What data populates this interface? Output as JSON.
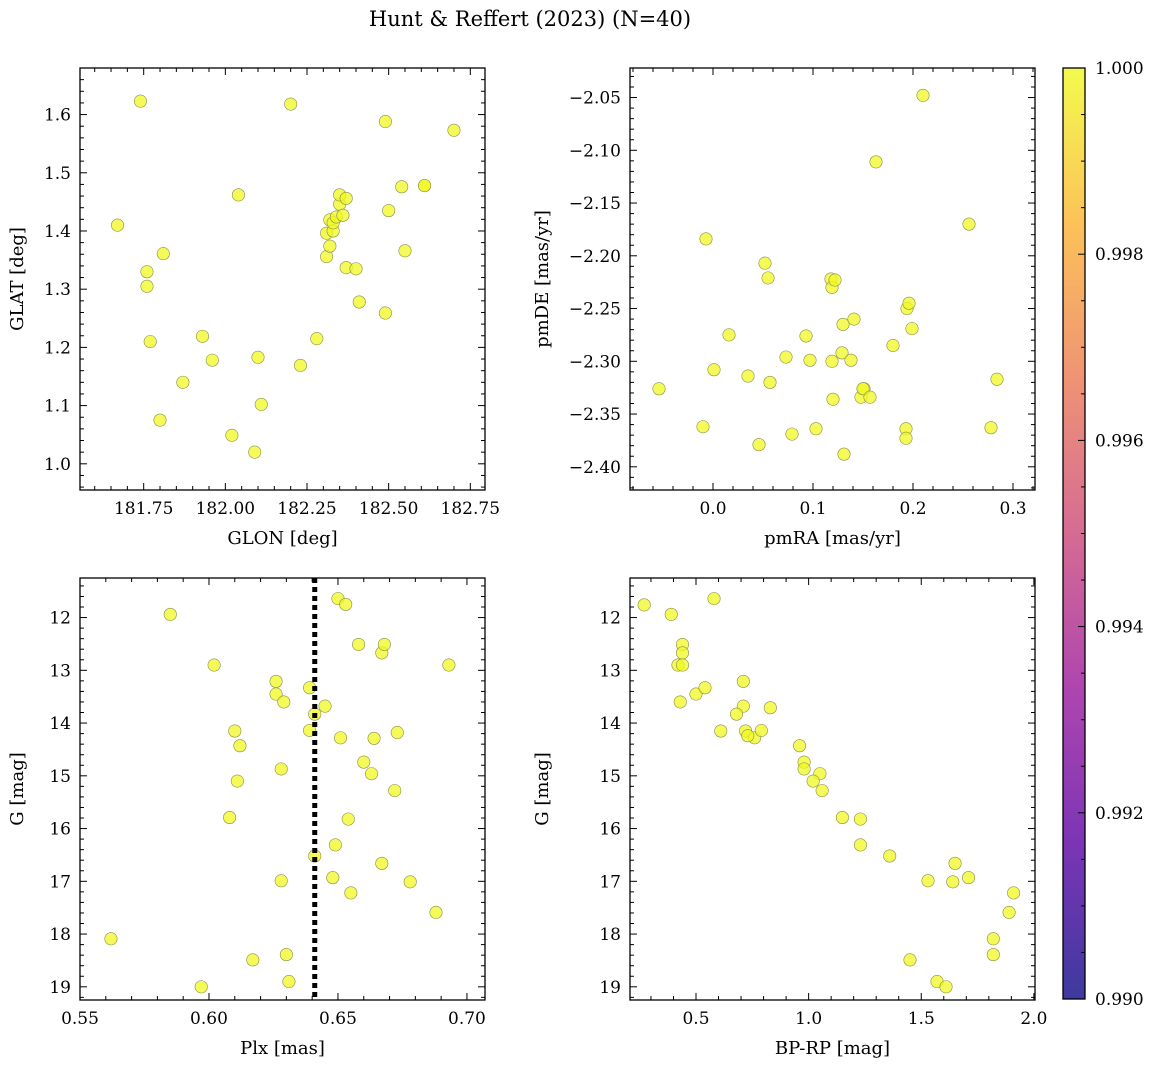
{
  "title": "Hunt & Reffert (2023) (N=40)",
  "colorbar": {
    "ticks": [
      "1.000",
      "0.998",
      "0.996",
      "0.994",
      "0.992",
      "0.990"
    ],
    "range": [
      0.99,
      1.0
    ],
    "colormap": "plasma",
    "colors": [
      "#0d0887",
      "#5b02a3",
      "#9a179b",
      "#cb4678",
      "#eb7852",
      "#fbb32f",
      "#f0f921"
    ]
  },
  "chart_data": [
    {
      "type": "scatter",
      "xlabel": "GLON [deg]",
      "ylabel": "GLAT [deg]",
      "xlim": [
        181.555,
        182.795
      ],
      "ylim": [
        0.955,
        1.68
      ],
      "xticks": [
        "181.75",
        "182.00",
        "182.25",
        "182.50",
        "182.75"
      ],
      "yticks": [
        "1.0",
        "1.1",
        "1.2",
        "1.3",
        "1.4",
        "1.5",
        "1.6"
      ],
      "x": [
        181.74,
        182.2,
        181.67,
        181.81,
        181.76,
        181.76,
        181.77,
        181.87,
        181.8,
        181.93,
        181.96,
        182.04,
        182.02,
        182.09,
        182.11,
        182.1,
        182.23,
        182.28,
        182.31,
        182.31,
        182.32,
        182.32,
        182.33,
        182.33,
        182.34,
        182.35,
        182.35,
        182.37,
        182.37,
        182.4,
        182.41,
        182.49,
        182.49,
        182.5,
        182.54,
        182.55,
        182.61,
        182.61,
        182.7,
        182.36
      ],
      "y": [
        1.623,
        1.618,
        1.41,
        1.361,
        1.33,
        1.305,
        1.21,
        1.14,
        1.075,
        1.219,
        1.178,
        1.462,
        1.049,
        1.02,
        1.102,
        1.183,
        1.169,
        1.215,
        1.396,
        1.356,
        1.374,
        1.419,
        1.4,
        1.414,
        1.424,
        1.446,
        1.462,
        1.456,
        1.337,
        1.335,
        1.278,
        1.588,
        1.259,
        1.435,
        1.476,
        1.366,
        1.478,
        1.478,
        1.573,
        1.427
      ],
      "color_values_min": 1.0
    },
    {
      "type": "scatter",
      "xlabel": "pmRA [mas/yr]",
      "ylabel": "pmDE [mas/yr]",
      "xlim": [
        -0.083,
        0.322
      ],
      "ylim": [
        -2.422,
        -2.022
      ],
      "xticks": [
        "0.0",
        "0.1",
        "0.2",
        "0.3"
      ],
      "yticks": [
        "−2.05",
        "−2.10",
        "−2.15",
        "−2.20",
        "−2.25",
        "−2.30",
        "−2.35",
        "−2.40"
      ],
      "x": [
        -0.054,
        -0.007,
        0.001,
        -0.01,
        0.016,
        0.035,
        0.046,
        0.052,
        0.055,
        0.057,
        0.073,
        0.079,
        0.093,
        0.097,
        0.103,
        0.118,
        0.119,
        0.119,
        0.12,
        0.122,
        0.129,
        0.13,
        0.131,
        0.138,
        0.141,
        0.148,
        0.151,
        0.15,
        0.157,
        0.163,
        0.18,
        0.193,
        0.193,
        0.194,
        0.196,
        0.199,
        0.21,
        0.256,
        0.278,
        0.284
      ],
      "y": [
        -2.326,
        -2.184,
        -2.308,
        -2.362,
        -2.275,
        -2.314,
        -2.379,
        -2.207,
        -2.221,
        -2.32,
        -2.296,
        -2.369,
        -2.276,
        -2.299,
        -2.364,
        -2.222,
        -2.23,
        -2.3,
        -2.336,
        -2.223,
        -2.292,
        -2.265,
        -2.388,
        -2.299,
        -2.26,
        -2.334,
        -2.326,
        -2.326,
        -2.334,
        -2.111,
        -2.285,
        -2.364,
        -2.373,
        -2.25,
        -2.245,
        -2.269,
        -2.048,
        -2.17,
        -2.363,
        -2.317
      ],
      "color_values_min": 1.0
    },
    {
      "type": "scatter",
      "xlabel": "Plx [mas]",
      "ylabel": "G [mag]",
      "xlim": [
        0.55,
        0.707
      ],
      "ylim": [
        19.25,
        11.25
      ],
      "y_inverted": true,
      "xticks": [
        "0.55",
        "0.60",
        "0.65",
        "0.70"
      ],
      "yticks": [
        "12",
        "13",
        "14",
        "15",
        "16",
        "17",
        "18",
        "19"
      ],
      "vline": 0.641,
      "x": [
        0.562,
        0.585,
        0.597,
        0.602,
        0.608,
        0.61,
        0.611,
        0.612,
        0.617,
        0.626,
        0.626,
        0.628,
        0.628,
        0.629,
        0.63,
        0.631,
        0.639,
        0.639,
        0.641,
        0.641,
        0.645,
        0.648,
        0.649,
        0.65,
        0.651,
        0.653,
        0.654,
        0.655,
        0.658,
        0.66,
        0.663,
        0.664,
        0.667,
        0.667,
        0.668,
        0.672,
        0.673,
        0.678,
        0.688,
        0.693
      ],
      "y": [
        18.09,
        11.94,
        19.0,
        12.9,
        15.79,
        14.15,
        15.1,
        14.43,
        18.49,
        13.21,
        13.45,
        16.99,
        14.87,
        13.6,
        18.39,
        18.9,
        13.33,
        14.14,
        13.83,
        16.52,
        13.68,
        16.93,
        16.31,
        11.64,
        14.28,
        11.75,
        15.82,
        17.22,
        12.51,
        14.74,
        14.96,
        14.29,
        16.66,
        12.67,
        12.51,
        15.28,
        14.18,
        17.01,
        17.59,
        12.9
      ],
      "color_values_min": 1.0
    },
    {
      "type": "scatter",
      "xlabel": "BP-RP [mag]",
      "ylabel": "G [mag]",
      "xlim": [
        0.207,
        2.005
      ],
      "ylim": [
        19.25,
        11.25
      ],
      "y_inverted": true,
      "xticks": [
        "0.5",
        "1.0",
        "1.5",
        "2.0"
      ],
      "yticks": [
        "12",
        "13",
        "14",
        "15",
        "16",
        "17",
        "18",
        "19"
      ],
      "x": [
        0.27,
        0.39,
        0.58,
        0.44,
        0.44,
        0.42,
        0.44,
        0.5,
        0.54,
        0.43,
        0.71,
        0.71,
        0.68,
        0.72,
        0.61,
        0.76,
        0.79,
        0.83,
        0.96,
        0.98,
        0.98,
        1.05,
        1.06,
        1.02,
        1.15,
        1.23,
        1.23,
        1.36,
        1.45,
        1.53,
        1.57,
        1.61,
        1.64,
        1.65,
        1.71,
        1.82,
        1.82,
        1.89,
        1.91,
        0.73
      ],
      "y": [
        11.76,
        11.94,
        11.64,
        12.51,
        12.67,
        12.9,
        12.9,
        13.45,
        13.33,
        13.6,
        13.21,
        13.68,
        13.83,
        14.15,
        14.15,
        14.28,
        14.14,
        13.71,
        14.43,
        14.74,
        14.87,
        14.96,
        15.28,
        15.1,
        15.79,
        15.82,
        16.31,
        16.52,
        18.49,
        16.99,
        18.9,
        19.0,
        17.01,
        16.66,
        16.93,
        18.09,
        18.39,
        17.59,
        17.22,
        14.24
      ],
      "color_values_min": 1.0
    }
  ]
}
